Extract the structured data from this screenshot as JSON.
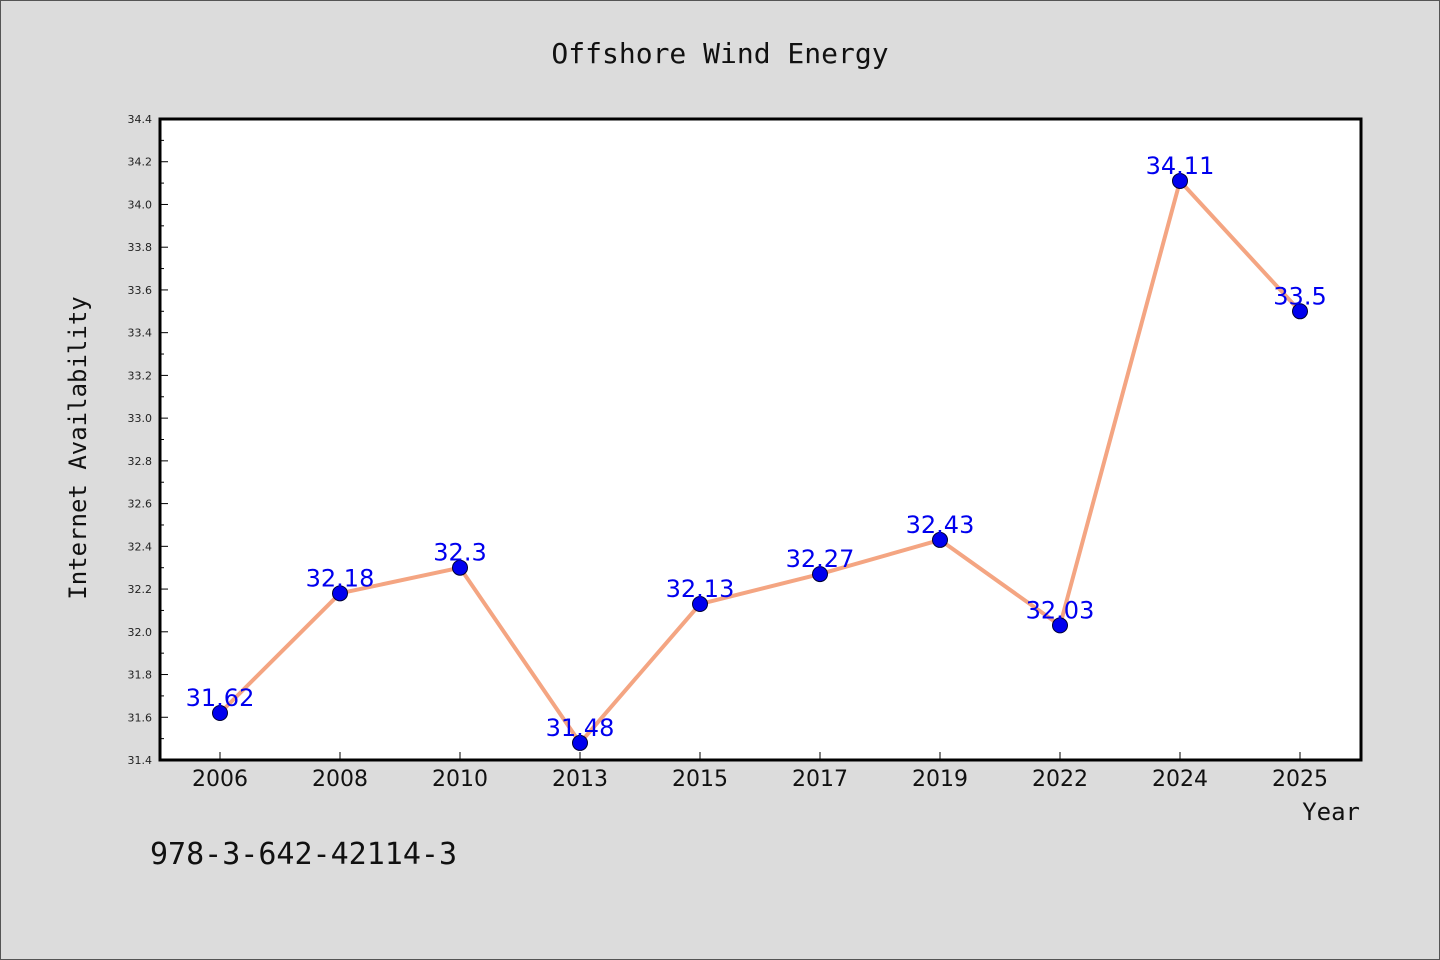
{
  "chart_data": {
    "type": "line",
    "title": "Offshore Wind Energy",
    "xlabel": "Year",
    "ylabel": "Internet Availability",
    "categories": [
      "2006",
      "2008",
      "2010",
      "2013",
      "2015",
      "2017",
      "2019",
      "2022",
      "2024",
      "2025"
    ],
    "values": [
      31.62,
      32.18,
      32.3,
      31.48,
      32.13,
      32.27,
      32.43,
      32.03,
      34.11,
      33.5
    ],
    "data_labels": [
      "31.62",
      "32.18",
      "32.3",
      "31.48",
      "32.13",
      "32.27",
      "32.43",
      "32.03",
      "34.11",
      "33.5"
    ],
    "ylim": [
      31.4,
      34.4
    ],
    "yticks": [
      "31.4",
      "31.6",
      "31.8",
      "32.0",
      "32.2",
      "32.4",
      "32.6",
      "32.8",
      "33.0",
      "33.2",
      "33.4",
      "33.6",
      "33.8",
      "34.0",
      "34.2",
      "34.4"
    ],
    "grid": false,
    "line_color": "#f4a582",
    "marker_color": "#0000ee",
    "label_color": "#0000ee",
    "plot_background": "#ffffff",
    "figure_background": "#dcdcdc"
  },
  "footer": {
    "isbn": "978-3-642-42114-3"
  }
}
